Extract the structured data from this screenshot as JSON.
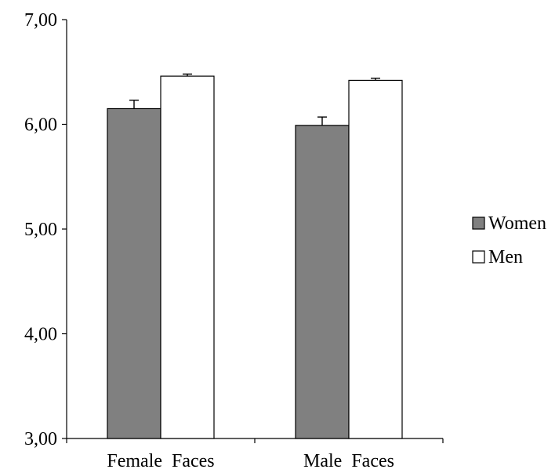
{
  "chart_data": {
    "type": "bar",
    "categories": [
      "Female  Faces",
      "Male  Faces"
    ],
    "series": [
      {
        "name": "Women",
        "values": [
          6.15,
          5.99
        ],
        "errors": [
          0.08,
          0.08
        ],
        "color": "#808080"
      },
      {
        "name": "Men",
        "values": [
          6.46,
          6.42
        ],
        "errors": [
          0.02,
          0.02
        ],
        "color": "#ffffff"
      }
    ],
    "yticks": [
      "3,00",
      "4,00",
      "5,00",
      "6,00",
      "7,00"
    ],
    "ylim": [
      3,
      7
    ],
    "grid": false,
    "legend_position": "right",
    "title": "",
    "xlabel": "",
    "ylabel": ""
  }
}
